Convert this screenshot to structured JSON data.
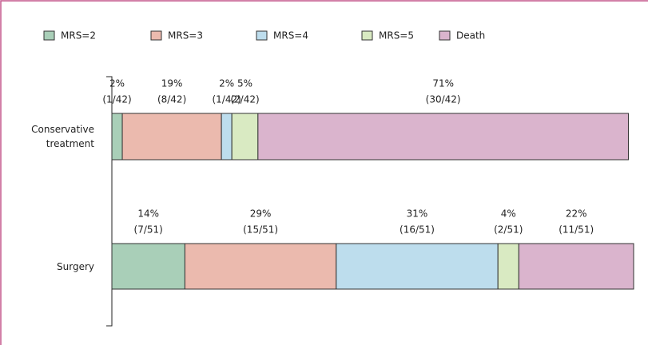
{
  "chart_data": {
    "type": "stacked-bar-horizontal",
    "categories": [
      "Conservative treatment",
      "Surgery"
    ],
    "xlim": [
      0,
      100
    ],
    "series": [
      {
        "name": "MRS=2",
        "color": "#a9cfb8",
        "values": [
          2,
          14
        ],
        "value_labels": [
          "2%",
          "14%"
        ],
        "count_labels": [
          "(1/42)",
          "(7/51)"
        ]
      },
      {
        "name": "MRS=3",
        "color": "#ebbaae",
        "values": [
          19,
          29
        ],
        "value_labels": [
          "19%",
          "29%"
        ],
        "count_labels": [
          "(8/42)",
          "(15/51)"
        ]
      },
      {
        "name": "MRS=4",
        "color": "#bddded",
        "values": [
          2,
          31
        ],
        "value_labels": [
          "2%",
          "31%"
        ],
        "count_labels": [
          "(1/42)",
          "(16/51)"
        ]
      },
      {
        "name": "MRS=5",
        "color": "#d9eac2",
        "values": [
          5,
          4
        ],
        "value_labels": [
          "5%",
          "4%"
        ],
        "count_labels": [
          "(2/42)",
          "(2/51)"
        ]
      },
      {
        "name": "Death",
        "color": "#dab4cd",
        "values": [
          71,
          22
        ],
        "value_labels": [
          "71%",
          "22%"
        ],
        "count_labels": [
          "(30/42)",
          "(11/51)"
        ]
      }
    ]
  }
}
